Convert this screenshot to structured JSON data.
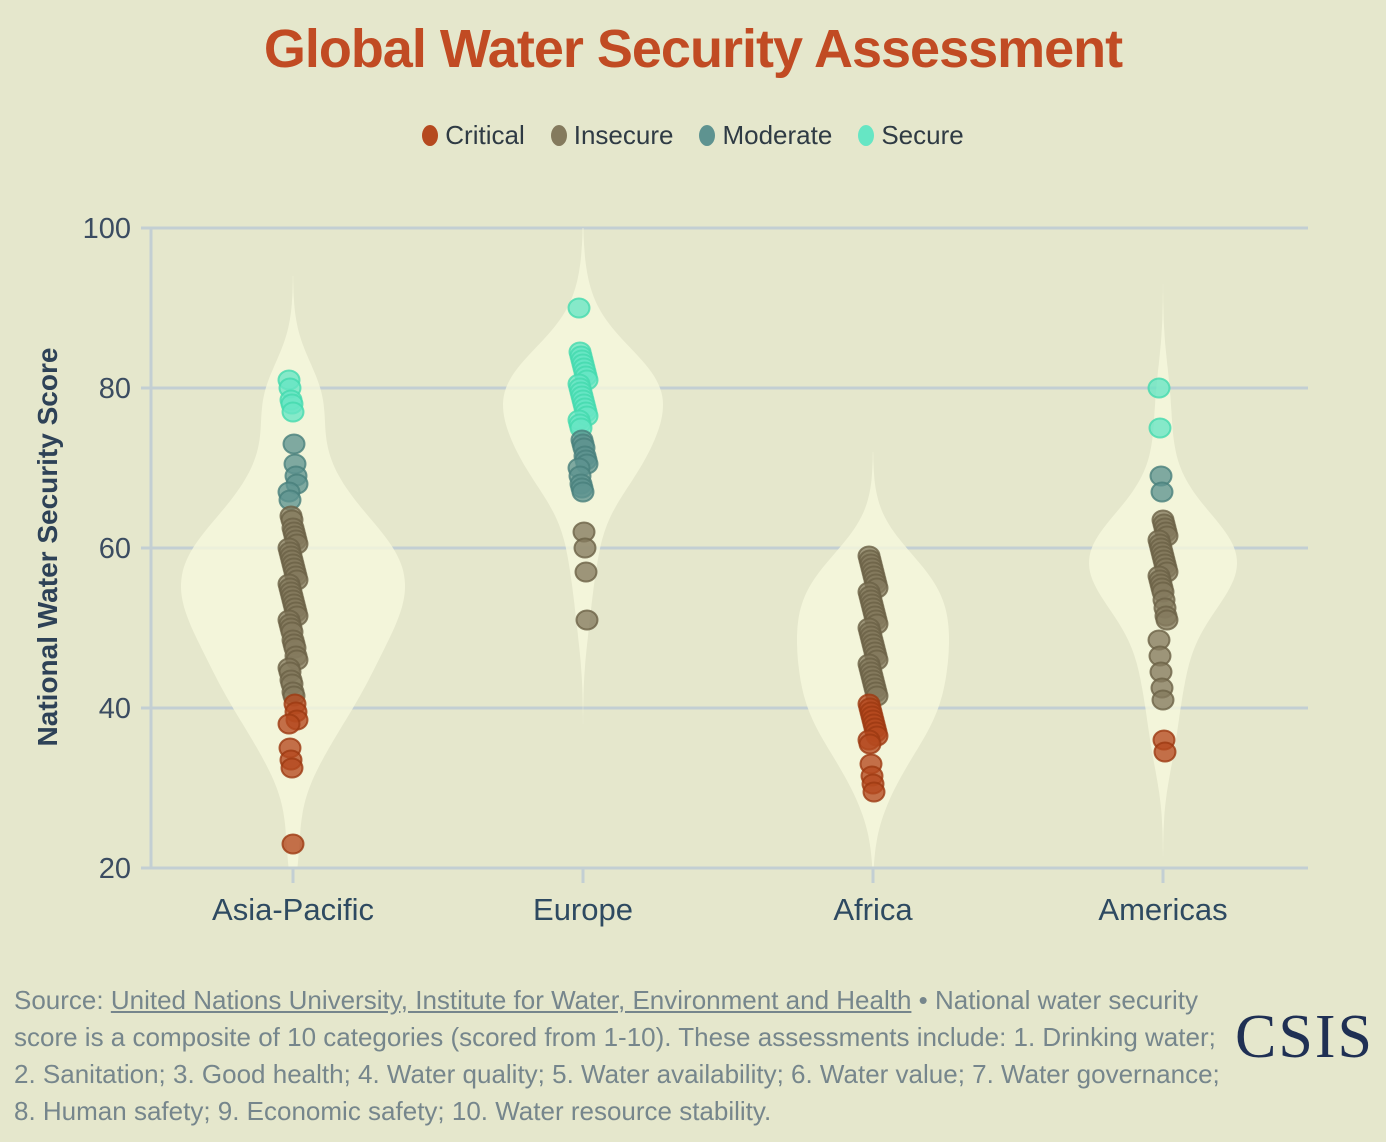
{
  "title": "Global Water Security Assessment",
  "legend": {
    "items": [
      {
        "label": "Critical",
        "color": "#b5491f"
      },
      {
        "label": "Insecure",
        "color": "#847a5d"
      },
      {
        "label": "Moderate",
        "color": "#5e9390"
      },
      {
        "label": "Secure",
        "color": "#66e6c4"
      }
    ]
  },
  "chart_data": {
    "type": "violin",
    "title": "Global Water Security Assessment",
    "ylabel": "National Water Security Score",
    "xlabel": "",
    "ylim": [
      20,
      100
    ],
    "yticks": [
      100,
      80,
      60,
      40,
      20
    ],
    "grid": true,
    "legend_position": "top-center",
    "categories": [
      "Asia-Pacific",
      "Europe",
      "Africa",
      "Americas"
    ],
    "status_colors": {
      "critical": "#b5491f",
      "insecure": "#847a5d",
      "moderate": "#5e9390",
      "secure": "#66e6c4"
    },
    "status_stroke_colors": {
      "critical": "#9c3a12",
      "insecure": "#6b6146",
      "moderate": "#48807c",
      "secure": "#43d9ae"
    },
    "violin_fill": "#f7f8de",
    "groups": [
      {
        "category": "Asia-Pacific",
        "points": {
          "secure": [
            81,
            80,
            78.5,
            78,
            77
          ],
          "moderate": [
            73,
            70.5,
            69,
            68,
            67,
            66
          ],
          "insecure": [
            64,
            63.5,
            62.5,
            62,
            61.5,
            61,
            60.5,
            60,
            59.5,
            59,
            58.5,
            58,
            57.5,
            57,
            56.5,
            56,
            55.5,
            55,
            54.5,
            54,
            53.5,
            53,
            52.5,
            52,
            51.5,
            51,
            50.5,
            50,
            49.5,
            48.5,
            48,
            47.5,
            46.5,
            46,
            45,
            44.5,
            43.5,
            43,
            42,
            41.5
          ],
          "critical": [
            40.5,
            39.5,
            38.5,
            38,
            35,
            33.5,
            32.5,
            23
          ]
        }
      },
      {
        "category": "Europe",
        "points": {
          "secure": [
            90,
            84.5,
            84,
            83.5,
            83,
            82.5,
            82,
            81.5,
            81,
            80.5,
            80,
            79.5,
            79,
            78.5,
            78,
            77.5,
            77,
            76.5,
            76,
            75.5,
            75
          ],
          "moderate": [
            73.5,
            73,
            72.5,
            71.5,
            71,
            70.5,
            70,
            69,
            68,
            67.5,
            67
          ],
          "insecure": [
            62,
            60,
            57,
            51
          ],
          "critical": []
        }
      },
      {
        "category": "Africa",
        "points": {
          "secure": [],
          "moderate": [],
          "insecure": [
            59,
            58.5,
            58,
            57.5,
            57,
            56.5,
            56,
            55.5,
            55,
            54.5,
            54,
            53.5,
            53,
            52.5,
            52,
            51.5,
            51,
            50.5,
            50,
            49.5,
            49,
            48.5,
            48,
            47.5,
            47,
            46.5,
            46,
            45.5,
            45,
            44.5,
            44,
            43.5,
            43,
            42.5,
            42,
            41.5
          ],
          "critical": [
            40.5,
            40,
            39.5,
            39,
            38.5,
            38,
            37.5,
            37,
            36.5,
            36,
            35.5,
            33,
            31.5,
            30.5,
            29.5
          ]
        }
      },
      {
        "category": "Americas",
        "points": {
          "secure": [
            80,
            75
          ],
          "moderate": [
            69,
            67
          ],
          "insecure": [
            63.5,
            63,
            62.5,
            62,
            61.5,
            61,
            60.5,
            60,
            59.5,
            59,
            58.5,
            58,
            57.5,
            57,
            56.5,
            56,
            55.5,
            55,
            54.5,
            53.5,
            52.5,
            51.5,
            51,
            48.5,
            46.5,
            44.5,
            42.5,
            41
          ],
          "critical": [
            36,
            34.5
          ]
        }
      }
    ]
  },
  "footer": {
    "source_label": "Source: ",
    "source_link": "United Nations University, Institute for Water, Environment and Health",
    "note": " • National water security score is a composite of 10 categories (scored from 1-10). These assessments include: 1. Drinking water; 2. Sanitation; 3. Good health; 4. Water quality; 5. Water availability; 6. Water value; 7. Water governance; 8. Human safety; 9. Economic safety; 10. Water resource stability."
  },
  "logo": {
    "text": "CSIS"
  },
  "colors": {
    "background": "#e5e7cc",
    "title": "#c14b23",
    "gridline": "#c3cfd3",
    "axis_text": "#3b4c61",
    "footer_text": "#76868c",
    "logo": "#1f3054"
  }
}
